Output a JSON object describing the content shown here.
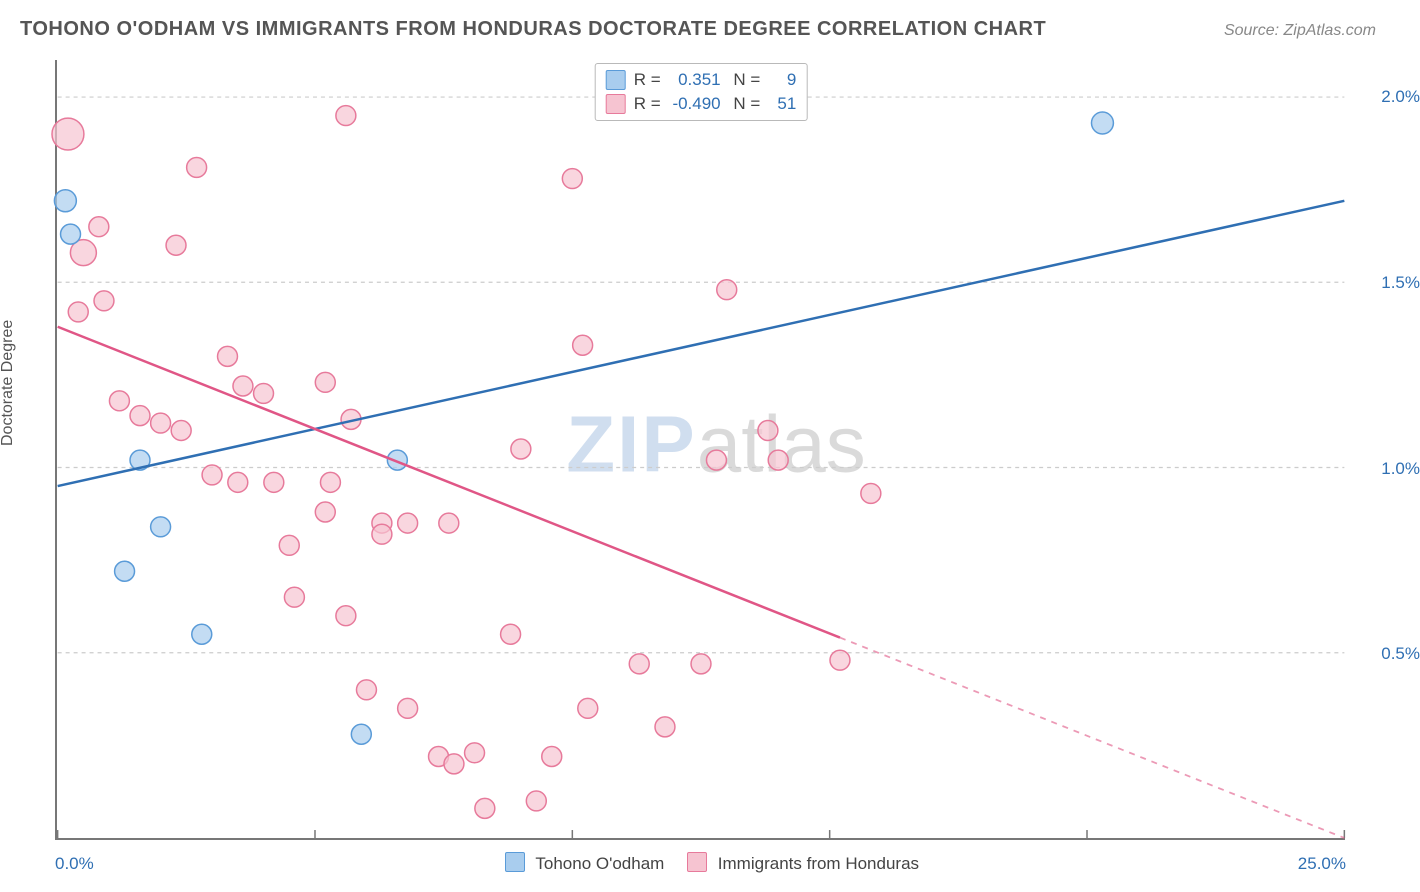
{
  "title": "TOHONO O'ODHAM VS IMMIGRANTS FROM HONDURAS DOCTORATE DEGREE CORRELATION CHART",
  "source_prefix": "Source: ",
  "source_name": "ZipAtlas.com",
  "watermark_a": "ZIP",
  "watermark_b": "atlas",
  "y_axis": {
    "label": "Doctorate Degree",
    "min": 0.0,
    "max": 2.1,
    "ticks": [
      0.5,
      1.0,
      1.5,
      2.0
    ],
    "tick_labels": [
      "0.5%",
      "1.0%",
      "1.5%",
      "2.0%"
    ]
  },
  "x_axis": {
    "min": 0.0,
    "max": 25.0,
    "ticks": [
      0,
      5,
      10,
      15,
      20,
      25
    ],
    "min_label": "0.0%",
    "max_label": "25.0%"
  },
  "grid_color": "#cccccc",
  "grid_dash": "4,4",
  "axis_color": "#777777",
  "series": [
    {
      "id": "tohono",
      "label": "Tohono O'odham",
      "color_fill": "#a9cdee",
      "color_stroke": "#5a9bd8",
      "line_color": "#2f6fb3",
      "r_value": "0.351",
      "n_value": "9",
      "trend": {
        "x1": 0,
        "y1": 0.95,
        "x2": 25,
        "y2": 1.72,
        "dash_from_x": null
      },
      "points": [
        {
          "x": 0.15,
          "y": 1.72,
          "r": 11
        },
        {
          "x": 0.25,
          "y": 1.63,
          "r": 10
        },
        {
          "x": 1.6,
          "y": 1.02,
          "r": 10
        },
        {
          "x": 2.0,
          "y": 0.84,
          "r": 10
        },
        {
          "x": 1.3,
          "y": 0.72,
          "r": 10
        },
        {
          "x": 2.8,
          "y": 0.55,
          "r": 10
        },
        {
          "x": 5.9,
          "y": 0.28,
          "r": 10
        },
        {
          "x": 6.6,
          "y": 1.02,
          "r": 10
        },
        {
          "x": 20.3,
          "y": 1.93,
          "r": 11
        }
      ]
    },
    {
      "id": "honduras",
      "label": "Immigrants from Honduras",
      "color_fill": "#f6c4d1",
      "color_stroke": "#e77a9b",
      "line_color": "#e05686",
      "r_value": "-0.490",
      "n_value": "51",
      "trend": {
        "x1": 0,
        "y1": 1.38,
        "x2": 25,
        "y2": 0.0,
        "dash_from_x": 15.2
      },
      "points": [
        {
          "x": 0.2,
          "y": 1.9,
          "r": 16
        },
        {
          "x": 0.5,
          "y": 1.58,
          "r": 13
        },
        {
          "x": 0.9,
          "y": 1.45,
          "r": 10
        },
        {
          "x": 0.4,
          "y": 1.42,
          "r": 10
        },
        {
          "x": 0.8,
          "y": 1.65,
          "r": 10
        },
        {
          "x": 2.3,
          "y": 1.6,
          "r": 10
        },
        {
          "x": 2.7,
          "y": 1.81,
          "r": 10
        },
        {
          "x": 1.2,
          "y": 1.18,
          "r": 10
        },
        {
          "x": 1.6,
          "y": 1.14,
          "r": 10
        },
        {
          "x": 2.0,
          "y": 1.12,
          "r": 10
        },
        {
          "x": 2.4,
          "y": 1.1,
          "r": 10
        },
        {
          "x": 3.3,
          "y": 1.3,
          "r": 10
        },
        {
          "x": 3.6,
          "y": 1.22,
          "r": 10
        },
        {
          "x": 4.0,
          "y": 1.2,
          "r": 10
        },
        {
          "x": 5.2,
          "y": 1.23,
          "r": 10
        },
        {
          "x": 5.6,
          "y": 1.95,
          "r": 10
        },
        {
          "x": 3.0,
          "y": 0.98,
          "r": 10
        },
        {
          "x": 3.5,
          "y": 0.96,
          "r": 10
        },
        {
          "x": 4.2,
          "y": 0.96,
          "r": 10
        },
        {
          "x": 5.3,
          "y": 0.96,
          "r": 10
        },
        {
          "x": 4.5,
          "y": 0.79,
          "r": 10
        },
        {
          "x": 5.2,
          "y": 0.88,
          "r": 10
        },
        {
          "x": 5.7,
          "y": 1.13,
          "r": 10
        },
        {
          "x": 6.3,
          "y": 0.85,
          "r": 10
        },
        {
          "x": 6.3,
          "y": 0.82,
          "r": 10
        },
        {
          "x": 6.8,
          "y": 0.85,
          "r": 10
        },
        {
          "x": 7.6,
          "y": 0.85,
          "r": 10
        },
        {
          "x": 4.6,
          "y": 0.65,
          "r": 10
        },
        {
          "x": 5.6,
          "y": 0.6,
          "r": 10
        },
        {
          "x": 6.0,
          "y": 0.4,
          "r": 10
        },
        {
          "x": 6.8,
          "y": 0.35,
          "r": 10
        },
        {
          "x": 7.4,
          "y": 0.22,
          "r": 10
        },
        {
          "x": 7.7,
          "y": 0.2,
          "r": 10
        },
        {
          "x": 8.1,
          "y": 0.23,
          "r": 10
        },
        {
          "x": 8.3,
          "y": 0.08,
          "r": 10
        },
        {
          "x": 9.3,
          "y": 0.1,
          "r": 10
        },
        {
          "x": 8.8,
          "y": 0.55,
          "r": 10
        },
        {
          "x": 9.0,
          "y": 1.05,
          "r": 10
        },
        {
          "x": 9.6,
          "y": 0.22,
          "r": 10
        },
        {
          "x": 10.0,
          "y": 1.78,
          "r": 10
        },
        {
          "x": 10.2,
          "y": 1.33,
          "r": 10
        },
        {
          "x": 10.3,
          "y": 0.35,
          "r": 10
        },
        {
          "x": 11.3,
          "y": 0.47,
          "r": 10
        },
        {
          "x": 11.8,
          "y": 0.3,
          "r": 10
        },
        {
          "x": 12.5,
          "y": 0.47,
          "r": 10
        },
        {
          "x": 12.8,
          "y": 1.02,
          "r": 10
        },
        {
          "x": 13.0,
          "y": 1.48,
          "r": 10
        },
        {
          "x": 13.8,
          "y": 1.1,
          "r": 10
        },
        {
          "x": 15.2,
          "y": 0.48,
          "r": 10
        },
        {
          "x": 15.8,
          "y": 0.93,
          "r": 10
        },
        {
          "x": 14.0,
          "y": 1.02,
          "r": 10
        }
      ]
    }
  ]
}
